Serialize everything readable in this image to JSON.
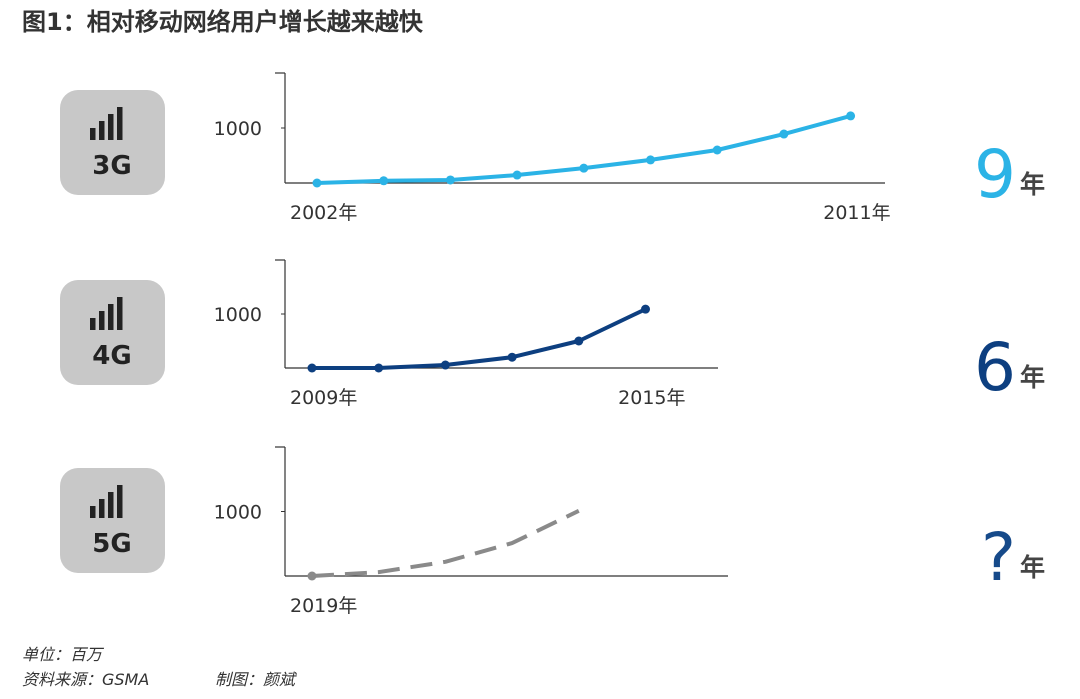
{
  "title": "图1：相对移动网络用户增长越来越快",
  "footer": {
    "unit": "单位：百万",
    "source": "资料来源：GSMA",
    "author": "制图：颜斌"
  },
  "chart_data": [
    {
      "type": "line",
      "label": "3G",
      "categories": [
        "2002年",
        null,
        null,
        null,
        null,
        null,
        null,
        null,
        "2011年"
      ],
      "values": [
        0,
        40,
        55,
        145,
        270,
        420,
        600,
        890,
        1220
      ],
      "color": "#2bb3e6",
      "dashed": false,
      "markers": "all",
      "ylim": [
        0,
        2000
      ],
      "yticks": [
        1000
      ],
      "duration": "9",
      "duration_unit": "年",
      "duration_color": "#2bb3e6"
    },
    {
      "type": "line",
      "label": "4G",
      "categories": [
        "2009年",
        null,
        null,
        null,
        null,
        "2015年"
      ],
      "values": [
        0,
        0,
        55,
        200,
        500,
        1090
      ],
      "color": "#0d3f80",
      "dashed": false,
      "markers": "all",
      "ylim": [
        0,
        2000
      ],
      "yticks": [
        1000
      ],
      "duration": "6",
      "duration_unit": "年",
      "duration_color": "#0d3f80"
    },
    {
      "type": "line",
      "label": "5G",
      "categories": [
        "2019年",
        null,
        null,
        null,
        null
      ],
      "values": [
        0,
        60,
        220,
        510,
        1010
      ],
      "color": "#8a8a8a",
      "dashed": true,
      "markers": "first",
      "ylim": [
        0,
        2000
      ],
      "yticks": [
        1000
      ],
      "duration": "?",
      "duration_unit": "年",
      "duration_color": "#164a8a"
    }
  ]
}
